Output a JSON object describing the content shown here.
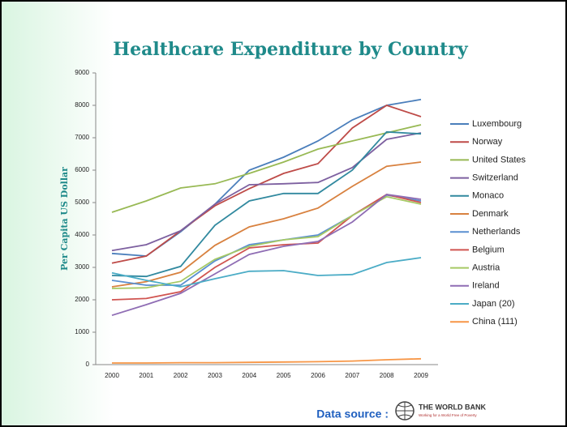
{
  "chart_data": {
    "type": "line",
    "title": "Healthcare Expenditure by Country",
    "y_label": "Per Capita US Dollar",
    "categories": [
      "2000",
      "2001",
      "2002",
      "2003",
      "2004",
      "2005",
      "2006",
      "2007",
      "2008",
      "2009"
    ],
    "ylim": [
      0,
      9000
    ],
    "yticks": [
      0,
      1000,
      2000,
      3000,
      4000,
      5000,
      6000,
      7000,
      8000,
      9000
    ],
    "grid": false,
    "legend": "right",
    "series": [
      {
        "name": "Luxembourg",
        "color": "#4a7ebb",
        "values": [
          3430,
          3350,
          4100,
          4950,
          6000,
          6400,
          6900,
          7550,
          8000,
          8180
        ]
      },
      {
        "name": "Norway",
        "color": "#be4b48",
        "values": [
          3130,
          3350,
          4130,
          4900,
          5430,
          5900,
          6200,
          7300,
          8000,
          7650
        ]
      },
      {
        "name": "United States",
        "color": "#98b954",
        "values": [
          4700,
          5050,
          5450,
          5580,
          5900,
          6250,
          6650,
          6900,
          7150,
          7400
        ]
      },
      {
        "name": "Switzerland",
        "color": "#7d60a0",
        "values": [
          3520,
          3700,
          4130,
          4950,
          5550,
          5580,
          5620,
          6080,
          6950,
          7150
        ]
      },
      {
        "name": "Monaco",
        "color": "#31899f",
        "values": [
          2750,
          2720,
          3030,
          4300,
          5050,
          5280,
          5280,
          6000,
          7180,
          7120
        ]
      },
      {
        "name": "Denmark",
        "color": "#d8813f",
        "values": [
          2400,
          2560,
          2850,
          3680,
          4250,
          4500,
          4830,
          5500,
          6120,
          6250
        ]
      },
      {
        "name": "Netherlands",
        "color": "#5a8fd0",
        "values": [
          2600,
          2450,
          2450,
          3200,
          3700,
          3850,
          4000,
          4600,
          5230,
          5050
        ]
      },
      {
        "name": "Belgium",
        "color": "#d05450",
        "values": [
          2000,
          2040,
          2250,
          3000,
          3600,
          3700,
          3750,
          4600,
          5250,
          5000
        ]
      },
      {
        "name": "Austria",
        "color": "#a6c964",
        "values": [
          2350,
          2370,
          2570,
          3250,
          3650,
          3850,
          3950,
          4600,
          5180,
          4950
        ]
      },
      {
        "name": "Ireland",
        "color": "#8f6db4",
        "values": [
          1520,
          1850,
          2200,
          2800,
          3400,
          3650,
          3800,
          4400,
          5250,
          5100
        ]
      },
      {
        "name": "Japan (20)",
        "color": "#4bacc6",
        "values": [
          2830,
          2600,
          2400,
          2650,
          2880,
          2900,
          2750,
          2780,
          3150,
          3300
        ]
      },
      {
        "name": "China (111)",
        "color": "#f79646",
        "values": [
          50,
          50,
          60,
          60,
          70,
          80,
          90,
          110,
          150,
          180
        ]
      }
    ]
  },
  "footer": {
    "source_label": "Data source :",
    "logo_title": "THE WORLD BANK",
    "logo_subtitle": "Working for a World Free of Poverty"
  }
}
